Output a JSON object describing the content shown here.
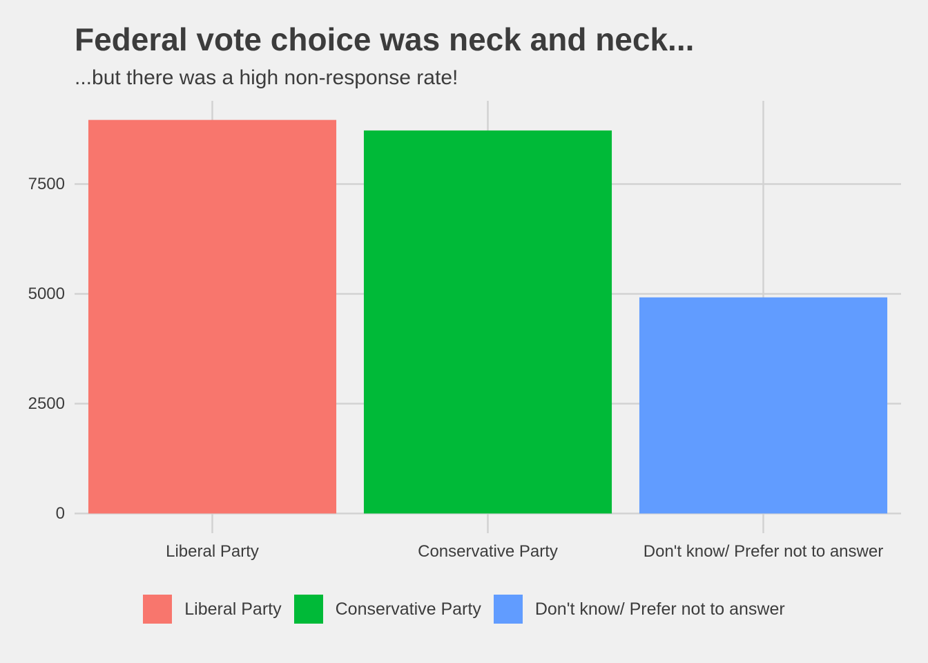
{
  "chart_data": {
    "type": "bar",
    "title": "Federal vote choice was neck and neck...",
    "subtitle": "...but there was a high non-response rate!",
    "xlabel": "",
    "ylabel": "",
    "categories": [
      "Liberal Party",
      "Conservative Party",
      "Don't know/ Prefer not to answer"
    ],
    "values": [
      8960,
      8720,
      4920
    ],
    "colors": [
      "#F8766D",
      "#00BA38",
      "#619CFF"
    ],
    "ylim": [
      0,
      9500
    ],
    "yticks": [
      0,
      2500,
      5000,
      7500
    ],
    "ytick_labels": [
      "0",
      "2500",
      "5000",
      "7500"
    ],
    "grid": true,
    "legend": {
      "position": "bottom",
      "entries": [
        "Liberal Party",
        "Conservative Party",
        "Don't know/ Prefer not to answer"
      ]
    }
  }
}
